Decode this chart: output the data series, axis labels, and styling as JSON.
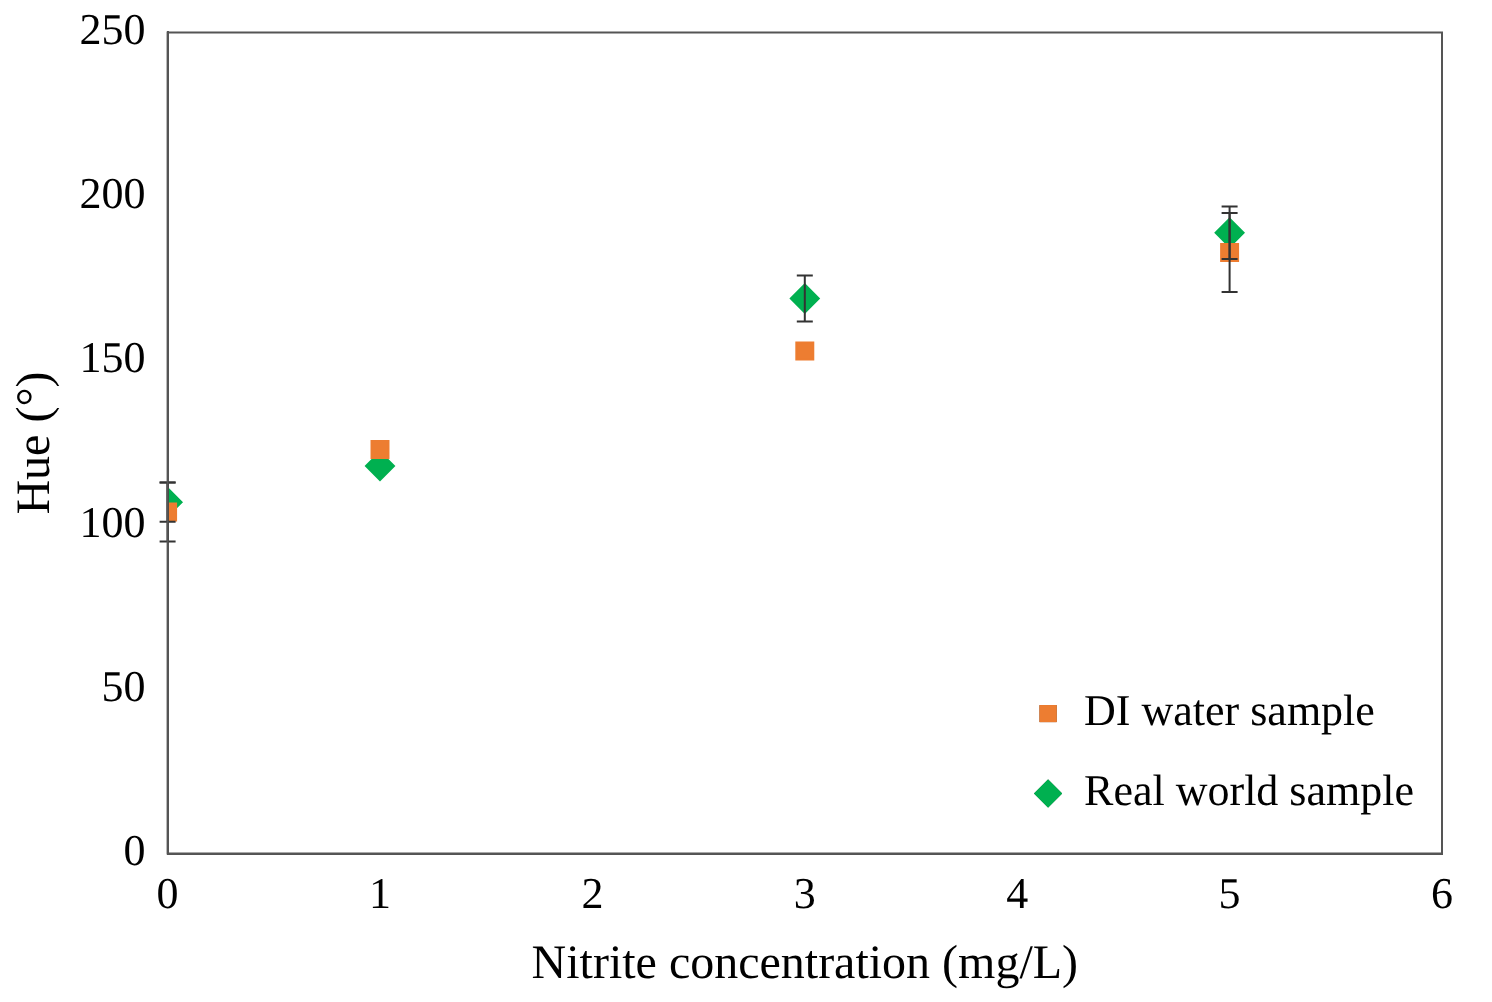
{
  "chart_data": {
    "type": "scatter",
    "xlabel": "Nitrite concentration (mg/L)",
    "ylabel": "Hue (°)",
    "x": [
      0,
      1,
      3,
      5
    ],
    "series": [
      {
        "name": "DI water sample",
        "color": "#ed7d31",
        "marker": "square",
        "values": [
          104,
          123,
          153,
          183
        ],
        "errors": [
          9,
          null,
          null,
          12
        ]
      },
      {
        "name": "Real world sample",
        "color": "#00b050",
        "marker": "diamond",
        "values": [
          107,
          118,
          169,
          189
        ],
        "errors": [
          6,
          null,
          7,
          8
        ]
      }
    ],
    "xlim": [
      0,
      6
    ],
    "xticks": [
      0,
      1,
      2,
      3,
      4,
      5,
      6
    ],
    "ylim": [
      0,
      250
    ],
    "yticks": [
      0,
      50,
      100,
      150,
      200,
      250
    ],
    "grid": false,
    "legend": "bottom right"
  }
}
